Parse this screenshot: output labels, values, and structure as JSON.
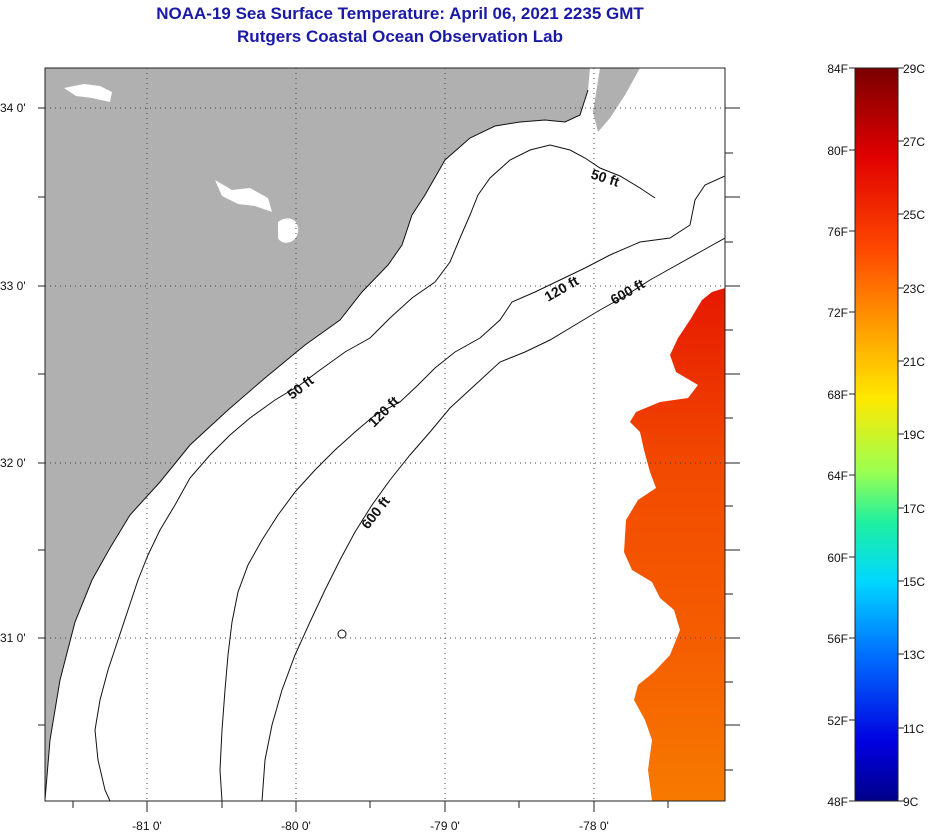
{
  "title": "NOAA-19 Sea Surface Temperature:  April 06, 2021 2235 GMT",
  "subtitle": "Rutgers Coastal Ocean Observation Lab",
  "map": {
    "lat_labels": [
      "34 0'",
      "33 0'",
      "32 0'",
      "31 0'"
    ],
    "lon_labels": [
      "-81 0'",
      "-80 0'",
      "-79 0'",
      "-78 0'"
    ],
    "contour_labels": [
      "50 ft",
      "120 ft",
      "600 ft",
      "50 ft",
      "120 ft",
      "600 ft"
    ],
    "land_color": "#b0b0b0"
  },
  "colorbar": {
    "f_labels": [
      "84F",
      "80F",
      "76F",
      "72F",
      "68F",
      "64F",
      "60F",
      "56F",
      "52F",
      "48F"
    ],
    "c_labels": [
      "29C",
      "27C",
      "25C",
      "23C",
      "21C",
      "19C",
      "17C",
      "15C",
      "13C",
      "11C",
      "9C"
    ]
  }
}
